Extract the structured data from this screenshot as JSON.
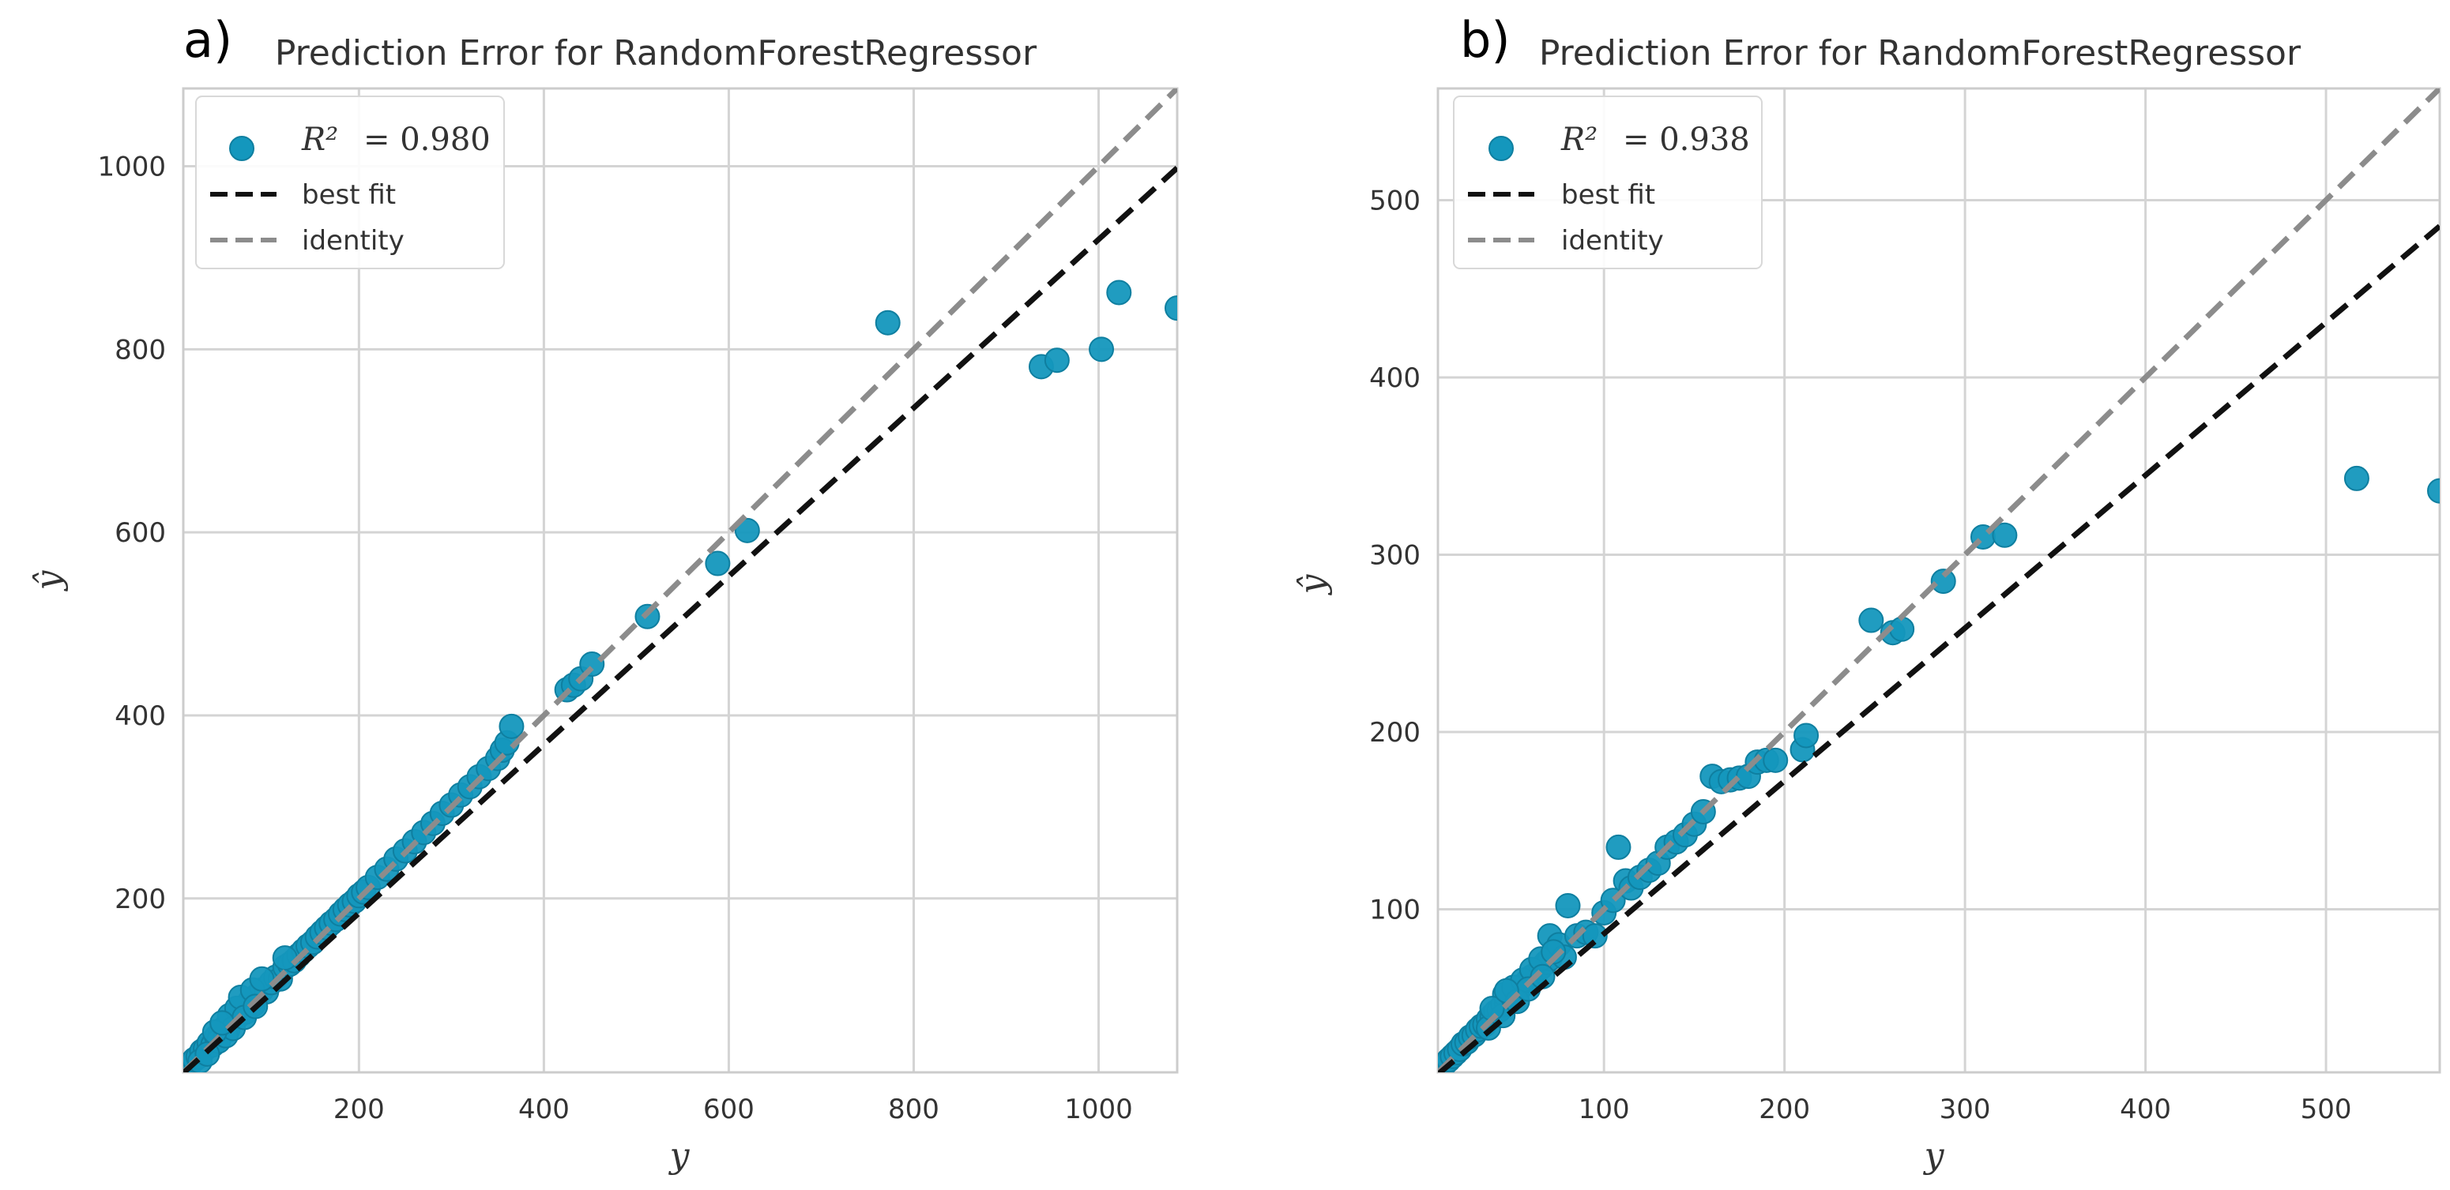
{
  "colors": {
    "point": "#1497bd",
    "point_edge": "#0f7fa0",
    "best_fit": "#111111",
    "identity": "#8c8c8c",
    "grid": "#d4d4d4",
    "frame": "#cccccc"
  },
  "chart_data": [
    {
      "type": "scatter",
      "panel_label": "a)",
      "title": "Prediction Error for RandomForestRegressor",
      "xlabel": "y",
      "ylabel": "ŷ",
      "xlim": [
        10,
        1085
      ],
      "ylim": [
        10,
        1085
      ],
      "xticks": [
        200,
        400,
        600,
        800,
        1000
      ],
      "yticks": [
        200,
        400,
        600,
        800,
        1000
      ],
      "grid": true,
      "legend_position": "top-left",
      "legend": {
        "r2_label": "R²",
        "r2_value": "= 0.980",
        "best_fit": "best fit",
        "identity": "identity"
      },
      "best_fit": {
        "slope": 0.92,
        "intercept": 0
      },
      "identity": {
        "slope": 1,
        "intercept": 0
      },
      "points": [
        [
          14,
          15
        ],
        [
          18,
          20
        ],
        [
          22,
          24
        ],
        [
          26,
          27
        ],
        [
          30,
          33
        ],
        [
          34,
          36
        ],
        [
          38,
          42
        ],
        [
          42,
          40
        ],
        [
          46,
          49
        ],
        [
          50,
          52
        ],
        [
          54,
          58
        ],
        [
          58,
          56
        ],
        [
          62,
          66
        ],
        [
          66,
          70
        ],
        [
          70,
          72
        ],
        [
          74,
          79
        ],
        [
          78,
          76
        ],
        [
          82,
          88
        ],
        [
          86,
          84
        ],
        [
          90,
          94
        ],
        [
          95,
          100
        ],
        [
          100,
          98
        ],
        [
          105,
          108
        ],
        [
          110,
          114
        ],
        [
          115,
          112
        ],
        [
          120,
          125
        ],
        [
          125,
          128
        ],
        [
          130,
          132
        ],
        [
          135,
          138
        ],
        [
          140,
          143
        ],
        [
          145,
          148
        ],
        [
          150,
          152
        ],
        [
          155,
          158
        ],
        [
          160,
          163
        ],
        [
          165,
          168
        ],
        [
          170,
          173
        ],
        [
          175,
          177
        ],
        [
          180,
          183
        ],
        [
          185,
          188
        ],
        [
          190,
          193
        ],
        [
          195,
          197
        ],
        [
          200,
          203
        ],
        [
          205,
          207
        ],
        [
          210,
          212
        ],
        [
          220,
          223
        ],
        [
          230,
          232
        ],
        [
          240,
          243
        ],
        [
          250,
          252
        ],
        [
          260,
          262
        ],
        [
          270,
          272
        ],
        [
          280,
          282
        ],
        [
          290,
          293
        ],
        [
          300,
          302
        ],
        [
          310,
          313
        ],
        [
          320,
          322
        ],
        [
          330,
          333
        ],
        [
          340,
          342
        ],
        [
          350,
          353
        ],
        [
          355,
          362
        ],
        [
          360,
          370
        ],
        [
          365,
          388
        ],
        [
          425,
          428
        ],
        [
          432,
          433
        ],
        [
          440,
          440
        ],
        [
          452,
          456
        ],
        [
          512,
          508
        ],
        [
          588,
          566
        ],
        [
          620,
          602
        ],
        [
          772,
          829
        ],
        [
          938,
          781
        ],
        [
          955,
          788
        ],
        [
          1003,
          800
        ],
        [
          1022,
          862
        ],
        [
          1085,
          845
        ],
        [
          60,
          72
        ],
        [
          68,
          80
        ],
        [
          72,
          92
        ],
        [
          85,
          100
        ],
        [
          95,
          112
        ],
        [
          120,
          135
        ],
        [
          48,
          44
        ],
        [
          56,
          50
        ],
        [
          64,
          58
        ],
        [
          76,
          70
        ],
        [
          88,
          82
        ],
        [
          28,
          22
        ],
        [
          36,
          30
        ],
        [
          44,
          54
        ],
        [
          52,
          64
        ]
      ]
    },
    {
      "type": "scatter",
      "panel_label": "b)",
      "title": "Prediction Error for RandomForestRegressor",
      "xlabel": "y",
      "ylabel": "ŷ",
      "xlim": [
        8,
        563
      ],
      "ylim": [
        8,
        563
      ],
      "xticks": [
        100,
        200,
        300,
        400,
        500
      ],
      "yticks": [
        100,
        200,
        300,
        400,
        500
      ],
      "grid": true,
      "legend_position": "top-left",
      "legend": {
        "r2_label": "R²",
        "r2_value": "= 0.938",
        "best_fit": "best fit",
        "identity": "identity"
      },
      "best_fit": {
        "slope": 0.862,
        "intercept": 0
      },
      "identity": {
        "slope": 1,
        "intercept": 0
      },
      "points": [
        [
          10,
          10
        ],
        [
          12,
          13
        ],
        [
          14,
          15
        ],
        [
          16,
          17
        ],
        [
          18,
          19
        ],
        [
          20,
          21
        ],
        [
          22,
          24
        ],
        [
          24,
          25
        ],
        [
          26,
          28
        ],
        [
          28,
          29
        ],
        [
          30,
          32
        ],
        [
          32,
          34
        ],
        [
          34,
          35
        ],
        [
          36,
          38
        ],
        [
          38,
          40
        ],
        [
          40,
          42
        ],
        [
          42,
          43
        ],
        [
          44,
          46
        ],
        [
          46,
          47
        ],
        [
          48,
          50
        ],
        [
          50,
          52
        ],
        [
          52,
          53
        ],
        [
          55,
          57
        ],
        [
          58,
          60
        ],
        [
          60,
          62
        ],
        [
          62,
          63
        ],
        [
          65,
          67
        ],
        [
          68,
          70
        ],
        [
          70,
          72
        ],
        [
          45,
          52
        ],
        [
          50,
          56
        ],
        [
          55,
          60
        ],
        [
          60,
          66
        ],
        [
          65,
          72
        ],
        [
          70,
          85
        ],
        [
          75,
          80
        ],
        [
          78,
          73
        ],
        [
          80,
          102
        ],
        [
          85,
          85
        ],
        [
          90,
          87
        ],
        [
          95,
          85
        ],
        [
          100,
          98
        ],
        [
          105,
          105
        ],
        [
          108,
          135
        ],
        [
          112,
          116
        ],
        [
          115,
          112
        ],
        [
          120,
          118
        ],
        [
          125,
          122
        ],
        [
          130,
          126
        ],
        [
          135,
          135
        ],
        [
          140,
          138
        ],
        [
          145,
          142
        ],
        [
          150,
          148
        ],
        [
          155,
          155
        ],
        [
          160,
          175
        ],
        [
          165,
          172
        ],
        [
          170,
          173
        ],
        [
          175,
          174
        ],
        [
          180,
          175
        ],
        [
          185,
          183
        ],
        [
          190,
          184
        ],
        [
          195,
          184
        ],
        [
          210,
          190
        ],
        [
          212,
          198
        ],
        [
          248,
          263
        ],
        [
          260,
          256
        ],
        [
          265,
          258
        ],
        [
          288,
          285
        ],
        [
          310,
          310
        ],
        [
          322,
          311
        ],
        [
          517,
          343
        ],
        [
          563,
          336
        ],
        [
          36,
          33
        ],
        [
          44,
          40
        ],
        [
          52,
          48
        ],
        [
          58,
          55
        ],
        [
          66,
          62
        ],
        [
          72,
          76
        ],
        [
          38,
          44
        ],
        [
          46,
          54
        ]
      ]
    }
  ]
}
